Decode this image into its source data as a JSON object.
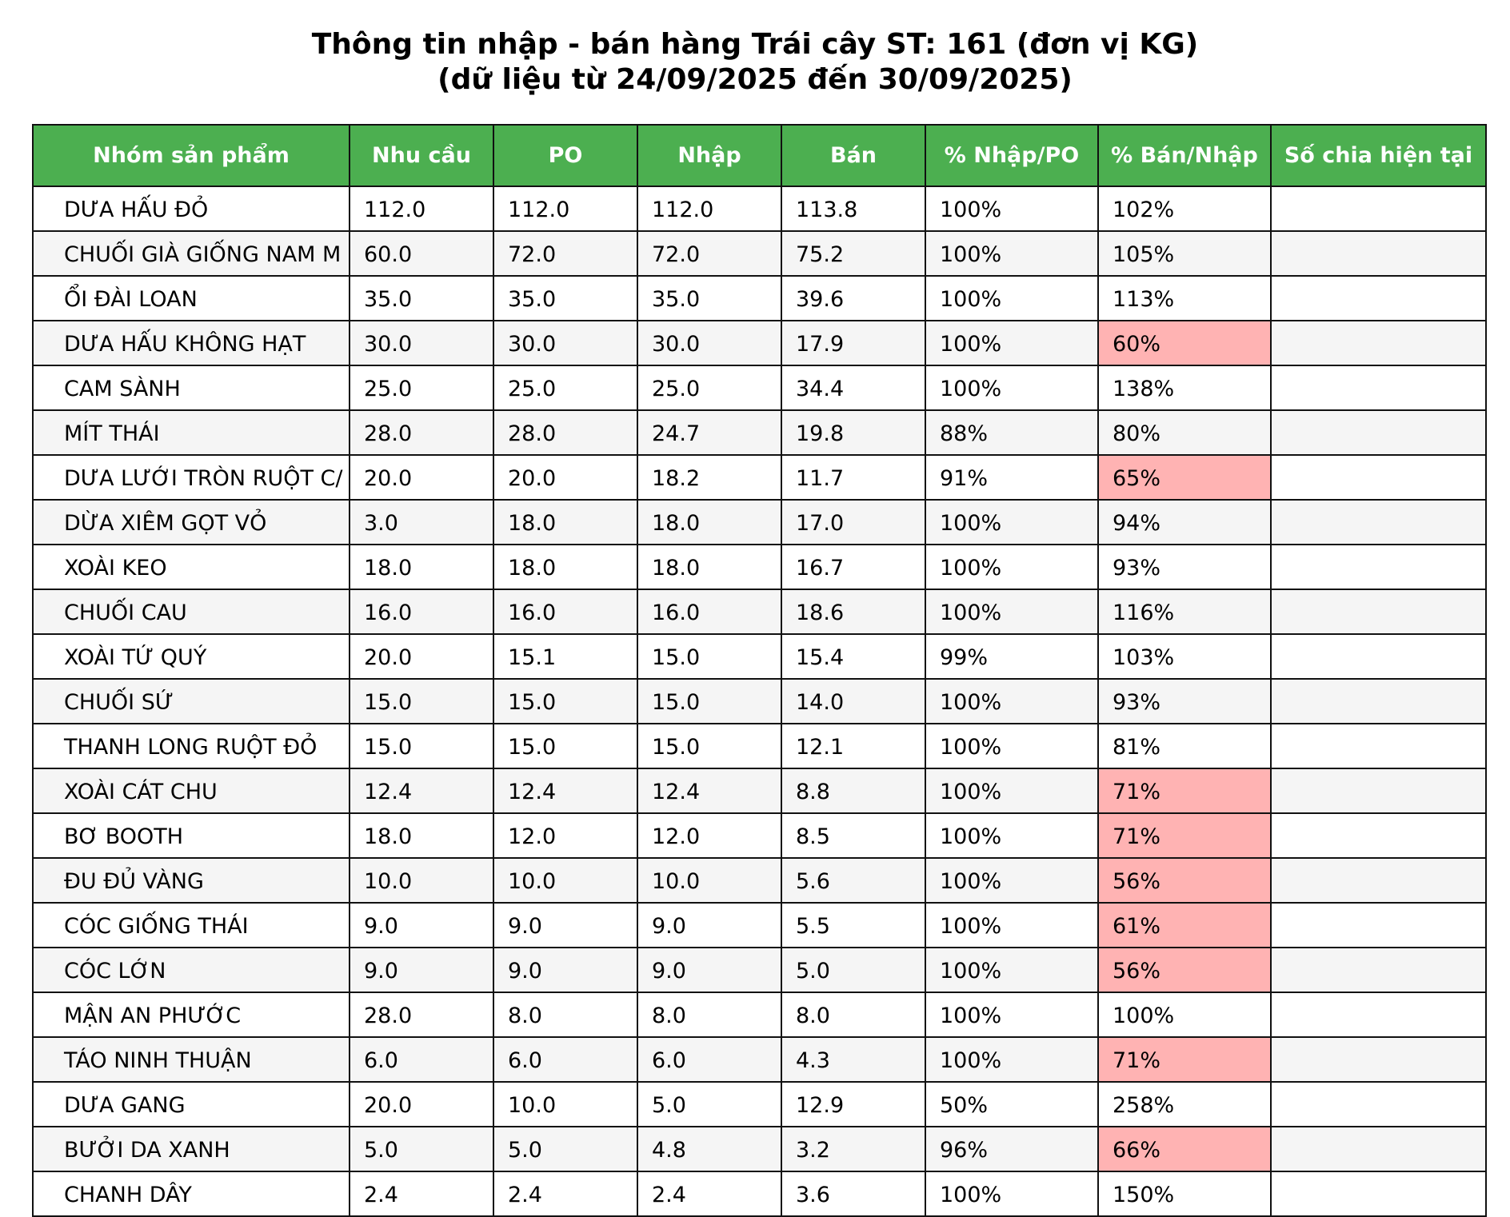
{
  "title": {
    "line1": "Thông tin nhập - bán hàng Trái cây ST: 161 (đơn vị KG)",
    "line2": "(dữ liệu từ 24/09/2025 đến 30/09/2025)"
  },
  "colors": {
    "header_bg": "#4caf50",
    "header_text": "#ffffff",
    "highlight_low": "#ffb3b3",
    "row_alt": "#f5f5f5"
  },
  "chart_data": {
    "type": "table",
    "columns": [
      "Nhóm sản phẩm",
      "Nhu cầu",
      "PO",
      "Nhập",
      "Bán",
      "% Nhập/PO",
      "% Bán/Nhập",
      "Số chia hiện tại"
    ],
    "rows": [
      {
        "name": "DƯA HẤU ĐỎ",
        "nhu_cau": "112.0",
        "po": "112.0",
        "nhap": "112.0",
        "ban": "113.8",
        "pct_nhap_po": "100%",
        "pct_ban_nhap": "102%",
        "so_chia": "",
        "low": false
      },
      {
        "name": "CHUỐI GIÀ GIỐNG NAM M",
        "nhu_cau": "60.0",
        "po": "72.0",
        "nhap": "72.0",
        "ban": "75.2",
        "pct_nhap_po": "100%",
        "pct_ban_nhap": "105%",
        "so_chia": "",
        "low": false
      },
      {
        "name": "ỔI ĐÀI LOAN",
        "nhu_cau": "35.0",
        "po": "35.0",
        "nhap": "35.0",
        "ban": "39.6",
        "pct_nhap_po": "100%",
        "pct_ban_nhap": "113%",
        "so_chia": "",
        "low": false
      },
      {
        "name": "DƯA HẤU KHÔNG HẠT",
        "nhu_cau": "30.0",
        "po": "30.0",
        "nhap": "30.0",
        "ban": "17.9",
        "pct_nhap_po": "100%",
        "pct_ban_nhap": "60%",
        "so_chia": "",
        "low": true
      },
      {
        "name": "CAM SÀNH",
        "nhu_cau": "25.0",
        "po": "25.0",
        "nhap": "25.0",
        "ban": "34.4",
        "pct_nhap_po": "100%",
        "pct_ban_nhap": "138%",
        "so_chia": "",
        "low": false
      },
      {
        "name": "MÍT THÁI",
        "nhu_cau": "28.0",
        "po": "28.0",
        "nhap": "24.7",
        "ban": "19.8",
        "pct_nhap_po": "88%",
        "pct_ban_nhap": "80%",
        "so_chia": "",
        "low": false
      },
      {
        "name": "DƯA LƯỚI TRÒN RUỘT C/",
        "nhu_cau": "20.0",
        "po": "20.0",
        "nhap": "18.2",
        "ban": "11.7",
        "pct_nhap_po": "91%",
        "pct_ban_nhap": "65%",
        "so_chia": "",
        "low": true
      },
      {
        "name": "DỪA XIÊM GỌT VỎ",
        "nhu_cau": "3.0",
        "po": "18.0",
        "nhap": "18.0",
        "ban": "17.0",
        "pct_nhap_po": "100%",
        "pct_ban_nhap": "94%",
        "so_chia": "",
        "low": false
      },
      {
        "name": "XOÀI KEO",
        "nhu_cau": "18.0",
        "po": "18.0",
        "nhap": "18.0",
        "ban": "16.7",
        "pct_nhap_po": "100%",
        "pct_ban_nhap": "93%",
        "so_chia": "",
        "low": false
      },
      {
        "name": "CHUỐI CAU",
        "nhu_cau": "16.0",
        "po": "16.0",
        "nhap": "16.0",
        "ban": "18.6",
        "pct_nhap_po": "100%",
        "pct_ban_nhap": "116%",
        "so_chia": "",
        "low": false
      },
      {
        "name": "XOÀI TỨ QUÝ",
        "nhu_cau": "20.0",
        "po": "15.1",
        "nhap": "15.0",
        "ban": "15.4",
        "pct_nhap_po": "99%",
        "pct_ban_nhap": "103%",
        "so_chia": "",
        "low": false
      },
      {
        "name": "CHUỐI SỨ",
        "nhu_cau": "15.0",
        "po": "15.0",
        "nhap": "15.0",
        "ban": "14.0",
        "pct_nhap_po": "100%",
        "pct_ban_nhap": "93%",
        "so_chia": "",
        "low": false
      },
      {
        "name": "THANH LONG RUỘT ĐỎ",
        "nhu_cau": "15.0",
        "po": "15.0",
        "nhap": "15.0",
        "ban": "12.1",
        "pct_nhap_po": "100%",
        "pct_ban_nhap": "81%",
        "so_chia": "",
        "low": false
      },
      {
        "name": "XOÀI CÁT CHU",
        "nhu_cau": "12.4",
        "po": "12.4",
        "nhap": "12.4",
        "ban": "8.8",
        "pct_nhap_po": "100%",
        "pct_ban_nhap": "71%",
        "so_chia": "",
        "low": true
      },
      {
        "name": "BƠ BOOTH",
        "nhu_cau": "18.0",
        "po": "12.0",
        "nhap": "12.0",
        "ban": "8.5",
        "pct_nhap_po": "100%",
        "pct_ban_nhap": "71%",
        "so_chia": "",
        "low": true
      },
      {
        "name": "ĐU ĐỦ VÀNG",
        "nhu_cau": "10.0",
        "po": "10.0",
        "nhap": "10.0",
        "ban": "5.6",
        "pct_nhap_po": "100%",
        "pct_ban_nhap": "56%",
        "so_chia": "",
        "low": true
      },
      {
        "name": "CÓC GIỐNG THÁI",
        "nhu_cau": "9.0",
        "po": "9.0",
        "nhap": "9.0",
        "ban": "5.5",
        "pct_nhap_po": "100%",
        "pct_ban_nhap": "61%",
        "so_chia": "",
        "low": true
      },
      {
        "name": "CÓC LỚN",
        "nhu_cau": "9.0",
        "po": "9.0",
        "nhap": "9.0",
        "ban": "5.0",
        "pct_nhap_po": "100%",
        "pct_ban_nhap": "56%",
        "so_chia": "",
        "low": true
      },
      {
        "name": "MẬN AN PHƯỚC",
        "nhu_cau": "28.0",
        "po": "8.0",
        "nhap": "8.0",
        "ban": "8.0",
        "pct_nhap_po": "100%",
        "pct_ban_nhap": "100%",
        "so_chia": "",
        "low": false
      },
      {
        "name": "TÁO NINH THUẬN",
        "nhu_cau": "6.0",
        "po": "6.0",
        "nhap": "6.0",
        "ban": "4.3",
        "pct_nhap_po": "100%",
        "pct_ban_nhap": "71%",
        "so_chia": "",
        "low": true
      },
      {
        "name": "DƯA GANG",
        "nhu_cau": "20.0",
        "po": "10.0",
        "nhap": "5.0",
        "ban": "12.9",
        "pct_nhap_po": "50%",
        "pct_ban_nhap": "258%",
        "so_chia": "",
        "low": false
      },
      {
        "name": "BƯỞI DA XANH",
        "nhu_cau": "5.0",
        "po": "5.0",
        "nhap": "4.8",
        "ban": "3.2",
        "pct_nhap_po": "96%",
        "pct_ban_nhap": "66%",
        "so_chia": "",
        "low": true
      },
      {
        "name": "CHANH DÂY",
        "nhu_cau": "2.4",
        "po": "2.4",
        "nhap": "2.4",
        "ban": "3.6",
        "pct_nhap_po": "100%",
        "pct_ban_nhap": "150%",
        "so_chia": "",
        "low": false
      }
    ]
  }
}
